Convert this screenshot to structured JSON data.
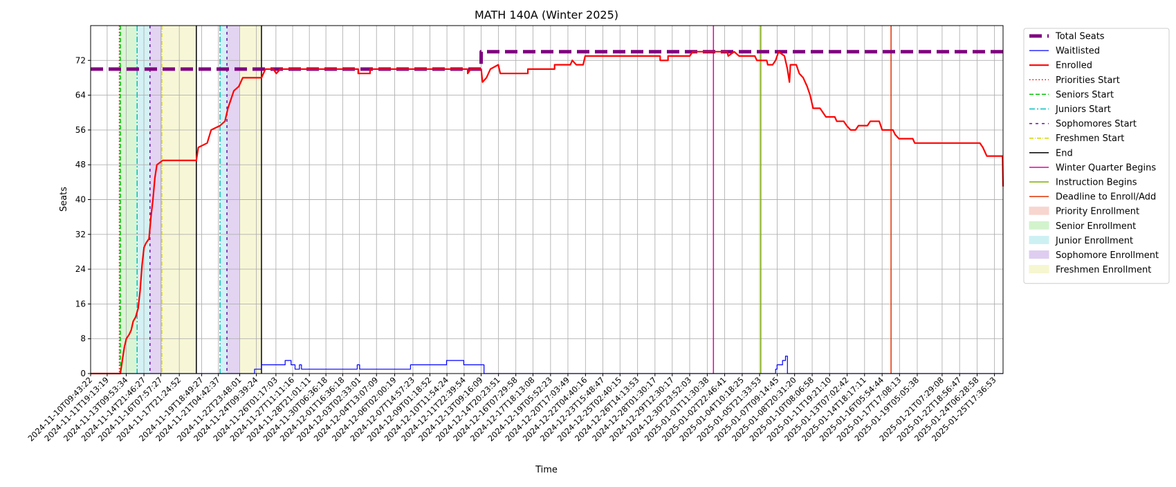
{
  "chart_data": {
    "type": "line",
    "title": "MATH 140A (Winter 2025)",
    "xlabel": "Time",
    "ylabel": "Seats",
    "ylim": [
      0,
      80
    ],
    "yticks": [
      0,
      8,
      16,
      24,
      32,
      40,
      48,
      56,
      64,
      72
    ],
    "x_range": [
      "2024-11-10T09:43:22",
      "2025-01-26T11:00:00"
    ],
    "xtick_labels": [
      "2024-11-10T09:43:22",
      "2024-11-11T19:13:19",
      "2024-11-13T09:53:34",
      "2024-11-14T21:46:27",
      "2024-11-16T07:57:27",
      "2024-11-17T21:24:52",
      "2024-11-19T18:49:27",
      "2024-11-21T04:42:37",
      "2024-11-22T23:48:01",
      "2024-11-24T09:39:24",
      "2024-11-26T01:17:03",
      "2024-11-27T11:11:16",
      "2024-11-28T21:01:11",
      "2024-11-30T06:36:18",
      "2024-12-01T16:36:18",
      "2024-12-03T02:33:01",
      "2024-12-04T13:07:09",
      "2024-12-06T02:00:19",
      "2024-12-07T14:57:23",
      "2024-12-09T01:18:52",
      "2024-12-10T11:54:24",
      "2024-12-11T22:39:54",
      "2024-12-13T09:16:09",
      "2024-12-14T20:23:51",
      "2024-12-16T07:29:58",
      "2024-12-17T18:13:08",
      "2024-12-19T05:52:23",
      "2024-12-20T17:03:49",
      "2024-12-22T04:40:16",
      "2024-12-23T15:48:47",
      "2024-12-25T02:40:15",
      "2024-12-26T14:13:53",
      "2024-12-28T01:30:17",
      "2024-12-29T12:30:17",
      "2024-12-30T23:52:03",
      "2025-01-01T11:30:38",
      "2025-01-02T22:46:41",
      "2025-01-04T10:18:25",
      "2025-01-05T21:33:53",
      "2025-01-07T09:14:45",
      "2025-01-08T20:31:20",
      "2025-01-10T08:06:58",
      "2025-01-11T19:21:10",
      "2025-01-13T07:02:42",
      "2025-01-14T18:17:11",
      "2025-01-16T05:54:44",
      "2025-01-17T17:08:13",
      "2025-01-19T05:05:38",
      "2025-01-21T07:29:08",
      "2025-01-22T18:56:47",
      "2025-01-24T06:28:58",
      "2025-01-25T17:36:53"
    ],
    "grid": true,
    "legend_position": "outside-right",
    "legend": [
      {
        "label": "Total Seats",
        "kind": "line",
        "color": "#800080",
        "dash": "18 8",
        "width": 5
      },
      {
        "label": "Waitlisted",
        "kind": "line",
        "color": "#0000ff",
        "dash": "",
        "width": 1.2
      },
      {
        "label": "Enrolled",
        "kind": "line",
        "color": "#ff0000",
        "dash": "",
        "width": 2.2
      },
      {
        "label": "Priorities Start",
        "kind": "line",
        "color": "#ff0000",
        "dash": "1.5 3",
        "width": 1.5
      },
      {
        "label": "Seniors Start",
        "kind": "line",
        "color": "#00c000",
        "dash": "6 3",
        "width": 1.5
      },
      {
        "label": "Juniors Start",
        "kind": "line",
        "color": "#00bfbf",
        "dash": "8 3 2 3",
        "width": 1.5
      },
      {
        "label": "Sophomores Start",
        "kind": "line",
        "color": "#6a0dad",
        "dash": "4 5",
        "width": 1.5
      },
      {
        "label": "Freshmen Start",
        "kind": "line",
        "color": "#d6d600",
        "dash": "6 2 1 2",
        "width": 1.5
      },
      {
        "label": "End",
        "kind": "line",
        "color": "#000000",
        "dash": "",
        "width": 1.5
      },
      {
        "label": "Winter Quarter Begins",
        "kind": "line",
        "color": "#e000a0",
        "dash": "",
        "width": 1.5
      },
      {
        "label": "Instruction Begins",
        "kind": "line",
        "color": "#7fae00",
        "dash": "",
        "width": 1.5
      },
      {
        "label": "Deadline to Enroll/Add",
        "kind": "line",
        "color": "#e03000",
        "dash": "",
        "width": 1.5
      },
      {
        "label": "Priority Enrollment",
        "kind": "patch",
        "color": "#f7d6cf"
      },
      {
        "label": "Senior Enrollment",
        "kind": "patch",
        "color": "#d3f3cd"
      },
      {
        "label": "Junior Enrollment",
        "kind": "patch",
        "color": "#cdf0f3"
      },
      {
        "label": "Sophomore Enrollment",
        "kind": "patch",
        "color": "#decdf0"
      },
      {
        "label": "Freshmen Enrollment",
        "kind": "patch",
        "color": "#f6f6d0"
      }
    ],
    "shaded_periods": [
      {
        "name": "Priority Enrollment",
        "start": "2024-11-12T20:00:00",
        "end": "2024-11-12T22:00:00",
        "color": "#f7d6cf"
      },
      {
        "name": "Senior Enrollment",
        "start": "2024-11-12T22:00:00",
        "end": "2024-11-14T08:00:00",
        "color": "#d3f3cd"
      },
      {
        "name": "Junior Enrollment",
        "start": "2024-11-14T08:00:00",
        "end": "2024-11-15T10:00:00",
        "color": "#cdf0f3"
      },
      {
        "name": "Sophomore Enrollment",
        "start": "2024-11-15T10:00:00",
        "end": "2024-11-16T10:00:00",
        "color": "#decdf0"
      },
      {
        "name": "Freshmen Enrollment",
        "start": "2024-11-16T10:00:00",
        "end": "2024-11-19T08:00:00",
        "color": "#f6f6d0"
      },
      {
        "name": "Junior Enrollment",
        "start": "2024-11-21T08:00:00",
        "end": "2024-11-21T22:00:00",
        "color": "#cdf0f3"
      },
      {
        "name": "Sophomore Enrollment",
        "start": "2024-11-21T22:00:00",
        "end": "2024-11-23T00:00:00",
        "color": "#decdf0"
      },
      {
        "name": "Freshmen Enrollment",
        "start": "2024-11-23T00:00:00",
        "end": "2024-11-24T20:00:00",
        "color": "#f6f6d0"
      }
    ],
    "vertical_lines": [
      {
        "name": "Priorities Start",
        "x": "2024-11-12T20:00:00",
        "color": "#ff0000",
        "dash": "1.5 3"
      },
      {
        "name": "Seniors Start",
        "x": "2024-11-12T22:00:00",
        "color": "#00c000",
        "dash": "6 3"
      },
      {
        "name": "Juniors Start",
        "x": "2024-11-14T08:00:00",
        "color": "#00bfbf",
        "dash": "8 3 2 3"
      },
      {
        "name": "Sophomores Start",
        "x": "2024-11-15T10:00:00",
        "color": "#6a0dad",
        "dash": "4 5"
      },
      {
        "name": "Freshmen Start",
        "x": "2024-11-16T10:00:00",
        "color": "#d6d600",
        "dash": "6 2 1 2"
      },
      {
        "name": "End",
        "x": "2024-11-19T08:00:00",
        "color": "#000000",
        "dash": ""
      },
      {
        "name": "Juniors Start",
        "x": "2024-11-21T08:00:00",
        "color": "#00bfbf",
        "dash": "8 3 2 3"
      },
      {
        "name": "Sophomores Start",
        "x": "2024-11-21T22:00:00",
        "color": "#6a0dad",
        "dash": "4 5"
      },
      {
        "name": "End",
        "x": "2024-11-24T20:00:00",
        "color": "#000000",
        "dash": ""
      },
      {
        "name": "Winter Quarter Begins",
        "x": "2025-01-02T00:00:00",
        "color": "#e000a0",
        "dash": ""
      },
      {
        "name": "Instruction Begins",
        "x": "2025-01-06T00:00:00",
        "color": "#7fae00",
        "dash": ""
      },
      {
        "name": "Deadline to Enroll/Add",
        "x": "2025-01-17T00:00:00",
        "color": "#e03000",
        "dash": ""
      }
    ],
    "series": [
      {
        "name": "Total Seats",
        "color": "#800080",
        "points": [
          [
            "2024-11-10T09:43:22",
            70
          ],
          [
            "2024-12-13T09:00:00",
            70
          ],
          [
            "2024-12-13T09:16:09",
            74
          ],
          [
            "2025-01-26T11:00:00",
            74
          ]
        ]
      },
      {
        "name": "Waitlisted",
        "color": "#0000ff",
        "points": [
          [
            "2024-11-10T09:43:22",
            0
          ],
          [
            "2024-11-24T06:00:00",
            0
          ],
          [
            "2024-11-24T06:00:00",
            1
          ],
          [
            "2024-11-24T20:00:00",
            1
          ],
          [
            "2024-11-24T20:00:00",
            2
          ],
          [
            "2024-11-26T20:00:00",
            2
          ],
          [
            "2024-11-26T20:00:00",
            3
          ],
          [
            "2024-11-27T08:00:00",
            3
          ],
          [
            "2024-11-27T08:00:00",
            2
          ],
          [
            "2024-11-27T16:00:00",
            2
          ],
          [
            "2024-11-27T16:00:00",
            1
          ],
          [
            "2024-11-28T01:00:00",
            1
          ],
          [
            "2024-11-28T01:00:00",
            2
          ],
          [
            "2024-11-28T05:00:00",
            2
          ],
          [
            "2024-11-28T05:00:00",
            1
          ],
          [
            "2024-12-02T22:00:00",
            1
          ],
          [
            "2024-12-02T22:00:00",
            2
          ],
          [
            "2024-12-03T03:00:00",
            2
          ],
          [
            "2024-12-03T03:00:00",
            1
          ],
          [
            "2024-12-07T10:00:00",
            1
          ],
          [
            "2024-12-07T10:00:00",
            2
          ],
          [
            "2024-12-10T11:00:00",
            2
          ],
          [
            "2024-12-10T11:00:00",
            3
          ],
          [
            "2024-12-11T22:00:00",
            3
          ],
          [
            "2024-12-11T22:00:00",
            2
          ],
          [
            "2024-12-13T15:00:00",
            2
          ],
          [
            "2024-12-13T15:00:00",
            0
          ],
          [
            "2025-01-07T06:00:00",
            0
          ],
          [
            "2025-01-07T06:00:00",
            1
          ],
          [
            "2025-01-07T09:00:00",
            1
          ],
          [
            "2025-01-07T09:00:00",
            2
          ],
          [
            "2025-01-07T20:00:00",
            2
          ],
          [
            "2025-01-07T20:00:00",
            3
          ],
          [
            "2025-01-08T02:00:00",
            3
          ],
          [
            "2025-01-08T02:00:00",
            4
          ],
          [
            "2025-01-08T06:00:00",
            4
          ],
          [
            "2025-01-08T06:00:00",
            0
          ],
          [
            "2025-01-26T11:00:00",
            0
          ]
        ]
      },
      {
        "name": "Enrolled",
        "color": "#ff0000",
        "points": [
          [
            "2024-11-10T09:43:22",
            0
          ],
          [
            "2024-11-12T22:00:00",
            0
          ],
          [
            "2024-11-13T02:00:00",
            3
          ],
          [
            "2024-11-13T06:00:00",
            6
          ],
          [
            "2024-11-13T10:00:00",
            8
          ],
          [
            "2024-11-13T16:00:00",
            9
          ],
          [
            "2024-11-13T20:00:00",
            10
          ],
          [
            "2024-11-14T00:00:00",
            12
          ],
          [
            "2024-11-14T05:00:00",
            13
          ],
          [
            "2024-11-14T10:00:00",
            15
          ],
          [
            "2024-11-14T14:00:00",
            19
          ],
          [
            "2024-11-14T18:00:00",
            25
          ],
          [
            "2024-11-14T22:00:00",
            29
          ],
          [
            "2024-11-15T02:00:00",
            30
          ],
          [
            "2024-11-15T08:00:00",
            31
          ],
          [
            "2024-11-15T12:00:00",
            36
          ],
          [
            "2024-11-15T16:00:00",
            40
          ],
          [
            "2024-11-15T20:00:00",
            45
          ],
          [
            "2024-11-16T00:00:00",
            48
          ],
          [
            "2024-11-16T12:00:00",
            49
          ],
          [
            "2024-11-19T08:00:00",
            49
          ],
          [
            "2024-11-19T12:00:00",
            52
          ],
          [
            "2024-11-20T06:00:00",
            53
          ],
          [
            "2024-11-20T14:00:00",
            56
          ],
          [
            "2024-11-21T08:00:00",
            57
          ],
          [
            "2024-11-21T18:00:00",
            58
          ],
          [
            "2024-11-22T00:00:00",
            61
          ],
          [
            "2024-11-22T06:00:00",
            63
          ],
          [
            "2024-11-22T12:00:00",
            65
          ],
          [
            "2024-11-22T22:00:00",
            66
          ],
          [
            "2024-11-23T06:00:00",
            68
          ],
          [
            "2024-11-24T20:00:00",
            68
          ],
          [
            "2024-11-25T04:00:00",
            70
          ],
          [
            "2024-11-25T20:00:00",
            70
          ],
          [
            "2024-11-26T02:00:00",
            69
          ],
          [
            "2024-11-26T10:00:00",
            70
          ],
          [
            "2024-12-03T00:00:00",
            70
          ],
          [
            "2024-12-03T00:00:00",
            69
          ],
          [
            "2024-12-04T00:00:00",
            69
          ],
          [
            "2024-12-04T00:00:00",
            70
          ],
          [
            "2024-12-12T06:00:00",
            70
          ],
          [
            "2024-12-12T06:00:00",
            69
          ],
          [
            "2024-12-12T12:00:00",
            70
          ],
          [
            "2024-12-13T09:16:09",
            70
          ],
          [
            "2024-12-13T12:00:00",
            67
          ],
          [
            "2024-12-13T20:00:00",
            68
          ],
          [
            "2024-12-14T04:00:00",
            70
          ],
          [
            "2024-12-14T20:00:00",
            71
          ],
          [
            "2024-12-15T00:00:00",
            69
          ],
          [
            "2024-12-17T08:00:00",
            69
          ],
          [
            "2024-12-17T08:00:00",
            70
          ],
          [
            "2024-12-19T14:00:00",
            70
          ],
          [
            "2024-12-19T14:00:00",
            71
          ],
          [
            "2024-12-20T22:00:00",
            71
          ],
          [
            "2024-12-21T02:00:00",
            72
          ],
          [
            "2024-12-21T10:00:00",
            71
          ],
          [
            "2024-12-22T00:00:00",
            71
          ],
          [
            "2024-12-22T04:00:00",
            73
          ],
          [
            "2024-12-28T12:00:00",
            73
          ],
          [
            "2024-12-28T12:00:00",
            72
          ],
          [
            "2024-12-29T04:00:00",
            72
          ],
          [
            "2024-12-29T04:00:00",
            73
          ],
          [
            "2024-12-31T00:00:00",
            73
          ],
          [
            "2024-12-31T06:00:00",
            74
          ],
          [
            "2025-01-02T12:00:00",
            74
          ],
          [
            "2025-01-03T04:00:00",
            74
          ],
          [
            "2025-01-03T06:00:00",
            73
          ],
          [
            "2025-01-03T18:00:00",
            74
          ],
          [
            "2025-01-04T04:00:00",
            73
          ],
          [
            "2025-01-05T12:00:00",
            73
          ],
          [
            "2025-01-05T16:00:00",
            72
          ],
          [
            "2025-01-06T12:00:00",
            72
          ],
          [
            "2025-01-06T14:00:00",
            71
          ],
          [
            "2025-01-07T00:00:00",
            71
          ],
          [
            "2025-01-07T06:00:00",
            72
          ],
          [
            "2025-01-07T12:00:00",
            74
          ],
          [
            "2025-01-08T00:00:00",
            73
          ],
          [
            "2025-01-08T06:00:00",
            70
          ],
          [
            "2025-01-08T10:00:00",
            67
          ],
          [
            "2025-01-08T12:00:00",
            71
          ],
          [
            "2025-01-09T00:00:00",
            71
          ],
          [
            "2025-01-09T06:00:00",
            69
          ],
          [
            "2025-01-09T14:00:00",
            68
          ],
          [
            "2025-01-09T22:00:00",
            66
          ],
          [
            "2025-01-10T04:00:00",
            64
          ],
          [
            "2025-01-10T10:00:00",
            61
          ],
          [
            "2025-01-11T00:00:00",
            61
          ],
          [
            "2025-01-11T06:00:00",
            60
          ],
          [
            "2025-01-11T12:00:00",
            59
          ],
          [
            "2025-01-12T06:00:00",
            59
          ],
          [
            "2025-01-12T10:00:00",
            58
          ],
          [
            "2025-01-13T00:00:00",
            58
          ],
          [
            "2025-01-13T06:00:00",
            57
          ],
          [
            "2025-01-13T14:00:00",
            56
          ],
          [
            "2025-01-14T00:00:00",
            56
          ],
          [
            "2025-01-14T06:00:00",
            57
          ],
          [
            "2025-01-15T00:00:00",
            57
          ],
          [
            "2025-01-15T06:00:00",
            58
          ],
          [
            "2025-01-16T00:00:00",
            58
          ],
          [
            "2025-01-16T06:00:00",
            56
          ],
          [
            "2025-01-17T04:00:00",
            56
          ],
          [
            "2025-01-17T08:00:00",
            55
          ],
          [
            "2025-01-17T16:00:00",
            54
          ],
          [
            "2025-01-18T20:00:00",
            54
          ],
          [
            "2025-01-19T00:00:00",
            53
          ],
          [
            "2025-01-24T12:00:00",
            53
          ],
          [
            "2025-01-24T18:00:00",
            52
          ],
          [
            "2025-01-25T02:00:00",
            50
          ],
          [
            "2025-01-26T10:00:00",
            50
          ],
          [
            "2025-01-26T11:00:00",
            43
          ]
        ]
      }
    ]
  }
}
